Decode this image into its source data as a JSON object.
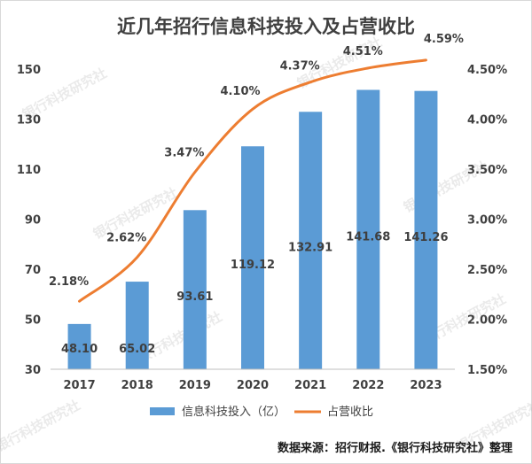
{
  "title": "近几年招行信息科技投入及占营收比",
  "source": "数据来源：招行财报.《银行科技研究社》整理",
  "watermark": "银行科技研究社",
  "colors": {
    "bar": "#5b9bd5",
    "line": "#ed7d31"
  },
  "chart_data": {
    "type": "bar",
    "title": "近几年招行信息科技投入及占营收比",
    "categories": [
      "2017",
      "2018",
      "2019",
      "2020",
      "2021",
      "2022",
      "2023"
    ],
    "series": [
      {
        "name": "信息科技投入（亿）",
        "type": "bar",
        "axis": "left",
        "values": [
          48.1,
          65.02,
          93.61,
          119.12,
          132.91,
          141.68,
          141.26
        ],
        "labels": [
          "48.10",
          "65.02",
          "93.61",
          "119.12",
          "132.91",
          "141.68",
          "141.26"
        ]
      },
      {
        "name": "占营收比",
        "type": "line",
        "axis": "right",
        "values": [
          2.18,
          2.62,
          3.47,
          4.1,
          4.37,
          4.51,
          4.59
        ],
        "labels": [
          "2.18%",
          "2.62%",
          "3.47%",
          "4.10%",
          "4.37%",
          "4.51%",
          "4.59%"
        ]
      }
    ],
    "y_left": {
      "min": 30,
      "max": 150,
      "ticks": [
        30,
        50,
        70,
        90,
        110,
        130,
        150
      ]
    },
    "y_right": {
      "min": 1.5,
      "max": 4.5,
      "ticks": [
        "1.50%",
        "2.00%",
        "2.50%",
        "3.00%",
        "3.50%",
        "4.00%",
        "4.50%"
      ]
    },
    "legend_position": "bottom",
    "grid": false
  }
}
